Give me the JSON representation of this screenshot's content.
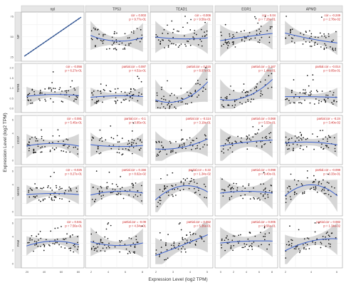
{
  "chart_data": {
    "type": "scatter",
    "ylabel": "Expression Level (log2 TPM)",
    "xlabel": "Expression Level (log2 TPM)",
    "column_headers": [
      "npl",
      "TP53",
      "TEAD1",
      "EGR1",
      "APMD"
    ],
    "row_labels": [
      "NF",
      "TERB",
      "CD37",
      "MAS3",
      "PAM"
    ],
    "colors": {
      "points": "#111111",
      "fit_line": "#3a5fcd",
      "ci_band": "#c8c8c8",
      "annotation": "#cc2222",
      "strip": "#e6e6e6",
      "grid": "#ececec",
      "identity_line": "#2b4f8f"
    },
    "panels": [
      {
        "row": 0,
        "col": 0,
        "annotation": [
          "",
          ""
        ],
        "trend": [
          0.0,
          1.0,
          2.0
        ],
        "spread": 0.0,
        "band": 0.0,
        "identity": true
      },
      {
        "row": 0,
        "col": 1,
        "annotation": [
          "cor = 0.003",
          "p = 9.77e-01"
        ],
        "trend": [
          0.55,
          0.4,
          0.5
        ],
        "spread": 0.45,
        "band": 0.18
      },
      {
        "row": 0,
        "col": 2,
        "annotation": [
          "cor = -0.006",
          "p = 9.56e-01"
        ],
        "trend": [
          0.5,
          0.45,
          0.48
        ],
        "spread": 0.45,
        "band": 0.2
      },
      {
        "row": 0,
        "col": 3,
        "annotation": [
          "cor = 0.04",
          "p = 7.28e-01"
        ],
        "trend": [
          0.4,
          0.5,
          0.58
        ],
        "spread": 0.4,
        "band": 0.2
      },
      {
        "row": 0,
        "col": 4,
        "annotation": [
          "cor = -0.249",
          "p = 2.78e-02"
        ],
        "trend": [
          0.6,
          0.45,
          0.35
        ],
        "spread": 0.4,
        "band": 0.15
      },
      {
        "row": 1,
        "col": 0,
        "annotation": [
          "cor = -0.056",
          "p = 6.27e-01"
        ],
        "trend": [
          0.3,
          0.35,
          0.32
        ],
        "spread": 0.35,
        "band": 0.12
      },
      {
        "row": 1,
        "col": 1,
        "annotation": [
          "partial.cor = 0.087",
          "p = 4.51e-01"
        ],
        "trend": [
          0.28,
          0.32,
          0.3
        ],
        "spread": 0.35,
        "band": 0.12
      },
      {
        "row": 1,
        "col": 2,
        "annotation": [
          "partial.cor = 0.015",
          "p = 8.97e-01"
        ],
        "trend": [
          0.25,
          0.22,
          0.7
        ],
        "spread": 0.35,
        "band": 0.25
      },
      {
        "row": 1,
        "col": 3,
        "annotation": [
          "partial.cor = 0.167",
          "p = 1.44e-01"
        ],
        "trend": [
          0.25,
          0.3,
          0.75
        ],
        "spread": 0.35,
        "band": 0.25
      },
      {
        "row": 1,
        "col": 4,
        "annotation": [
          "partial.cor = -0.014",
          "p = 9.05e-01"
        ],
        "trend": [
          0.3,
          0.3,
          0.28
        ],
        "spread": 0.35,
        "band": 0.12
      },
      {
        "row": 2,
        "col": 0,
        "annotation": [
          "cor = 0.081",
          "p = 5.45e-01"
        ],
        "trend": [
          0.35,
          0.42,
          0.35
        ],
        "spread": 0.38,
        "band": 0.15
      },
      {
        "row": 2,
        "col": 1,
        "annotation": [
          "partial.cor = -0.1",
          "p = 3.85e-01"
        ],
        "trend": [
          0.4,
          0.35,
          0.38
        ],
        "spread": 0.38,
        "band": 0.15
      },
      {
        "row": 2,
        "col": 2,
        "annotation": [
          "partial.cor = -0.114",
          "p = 3.19e-01"
        ],
        "trend": [
          0.3,
          0.33,
          0.55
        ],
        "spread": 0.38,
        "band": 0.22
      },
      {
        "row": 2,
        "col": 3,
        "annotation": [
          "partial.cor = 0.068",
          "p = 5.53e-01"
        ],
        "trend": [
          0.35,
          0.45,
          0.5
        ],
        "spread": 0.38,
        "band": 0.22
      },
      {
        "row": 2,
        "col": 4,
        "annotation": [
          "partial.cor = -0.24",
          "p = 3.40e-02"
        ],
        "trend": [
          0.42,
          0.45,
          0.38
        ],
        "spread": 0.38,
        "band": 0.15
      },
      {
        "row": 3,
        "col": 0,
        "annotation": [
          "cor = -0.025",
          "p = 8.27e-01"
        ],
        "trend": [
          0.42,
          0.45,
          0.42
        ],
        "spread": 0.38,
        "band": 0.12
      },
      {
        "row": 3,
        "col": 1,
        "annotation": [
          "partial.cor = 0.156",
          "p = 8.62e-02"
        ],
        "trend": [
          0.4,
          0.5,
          0.45
        ],
        "spread": 0.38,
        "band": 0.15
      },
      {
        "row": 3,
        "col": 2,
        "annotation": [
          "partial.cor = 0.22",
          "p = 1.34e-02"
        ],
        "trend": [
          0.25,
          0.62,
          0.45
        ],
        "spread": 0.38,
        "band": 0.2
      },
      {
        "row": 3,
        "col": 3,
        "annotation": [
          "partial.cor = 0.098",
          "p = 9.40e-01"
        ],
        "trend": [
          0.45,
          0.5,
          0.45
        ],
        "spread": 0.38,
        "band": 0.2
      },
      {
        "row": 3,
        "col": 4,
        "annotation": [
          "partial.cor = -0.098",
          "p = 3.33e-01"
        ],
        "trend": [
          0.35,
          0.65,
          0.35
        ],
        "spread": 0.38,
        "band": 0.2
      },
      {
        "row": 4,
        "col": 0,
        "annotation": [
          "cor = 0.041",
          "p = 7.56e-01"
        ],
        "trend": [
          0.42,
          0.55,
          0.45
        ],
        "spread": 0.4,
        "band": 0.12
      },
      {
        "row": 4,
        "col": 1,
        "annotation": [
          "partial.cor = -0.09",
          "p = 4.34e-01"
        ],
        "trend": [
          0.55,
          0.45,
          0.52
        ],
        "spread": 0.4,
        "band": 0.18
      },
      {
        "row": 4,
        "col": 2,
        "annotation": [
          "partial.cor = 0.052",
          "p = 5.36e-01"
        ],
        "trend": [
          0.2,
          0.45,
          0.72
        ],
        "spread": 0.4,
        "band": 0.22
      },
      {
        "row": 4,
        "col": 3,
        "annotation": [
          "partial.cor = 0.005",
          "p = 9.56e-01"
        ],
        "trend": [
          0.5,
          0.55,
          0.55
        ],
        "spread": 0.4,
        "band": 0.2
      },
      {
        "row": 4,
        "col": 4,
        "annotation": [
          "partial.cor = 0.082",
          "p = 1.34e-02"
        ],
        "trend": [
          0.3,
          0.55,
          0.6
        ],
        "spread": 0.4,
        "band": 0.2
      }
    ],
    "row_tick_labels": [
      [
        "25",
        "50",
        "75"
      ],
      [
        "0.0",
        "0.5",
        "1.0",
        "1.5",
        "2.0"
      ],
      [
        "0",
        "2",
        "4",
        "6"
      ],
      [
        "0",
        "2",
        "4",
        "6"
      ],
      [
        "0",
        "2",
        "4",
        "6"
      ]
    ],
    "col_tick_labels": [
      [
        "20",
        "40",
        "60",
        "80"
      ],
      [
        "2",
        "4",
        "6",
        "8"
      ],
      [
        "2",
        "3",
        "4",
        "5"
      ],
      [
        "0",
        "2",
        "4",
        "6",
        "8"
      ],
      [
        "2",
        "4",
        "6"
      ]
    ]
  }
}
